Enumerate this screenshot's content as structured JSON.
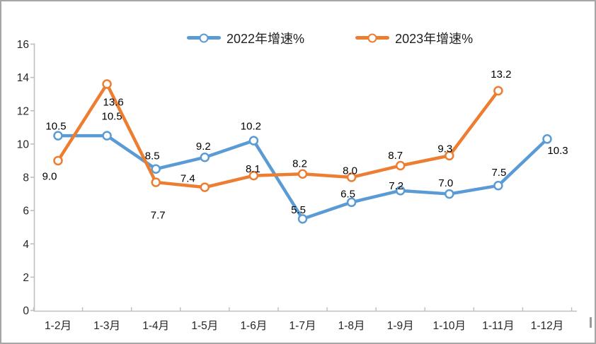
{
  "chart_data": {
    "type": "line",
    "title": "",
    "categories": [
      "1-2月",
      "1-3月",
      "1-4月",
      "1-5月",
      "1-6月",
      "1-7月",
      "1-8月",
      "1-9月",
      "1-10月",
      "1-11月",
      "1-12月"
    ],
    "series": [
      {
        "name": "2022年增速%",
        "color": "#5B9BD5",
        "values": [
          10.5,
          10.5,
          8.5,
          9.2,
          10.2,
          5.5,
          6.5,
          7.2,
          7.0,
          7.5,
          10.3
        ],
        "label_offsets": [
          [
            -3,
            -14
          ],
          [
            7,
            -28
          ],
          [
            -5,
            -19
          ],
          [
            -2,
            -16
          ],
          [
            -4,
            -21
          ],
          [
            -6,
            -13
          ],
          [
            -5,
            -12
          ],
          [
            -6,
            -7
          ],
          [
            -5,
            -16
          ],
          [
            1,
            -19
          ],
          [
            15,
            16
          ]
        ]
      },
      {
        "name": "2023年增速%",
        "color": "#ED7D31",
        "values": [
          9.0,
          13.6,
          7.7,
          7.4,
          8.1,
          8.2,
          8.0,
          8.7,
          9.3,
          13.2
        ],
        "label_offsets": [
          [
            -12,
            22
          ],
          [
            9,
            25
          ],
          [
            3,
            46
          ],
          [
            -24,
            -13
          ],
          [
            -1,
            -10
          ],
          [
            -4,
            -15
          ],
          [
            -2,
            -10
          ],
          [
            -7,
            -15
          ],
          [
            -6,
            -10
          ],
          [
            4,
            -24
          ]
        ]
      }
    ],
    "xlabel": "",
    "ylabel": "",
    "ylim": [
      0,
      16
    ],
    "y_tick_step": 2,
    "y_tick_labels": [
      "0",
      "2",
      "4",
      "6",
      "8",
      "10",
      "12",
      "14",
      "16"
    ],
    "grid": "off",
    "legend_position": "top",
    "marker": "circle",
    "data_label_format": "one-decimal",
    "colors": {
      "axis_line": "#bfbfbf",
      "tick_label": "#262626",
      "data_label": "#000000",
      "frame_border": "#a6a6a6"
    }
  }
}
